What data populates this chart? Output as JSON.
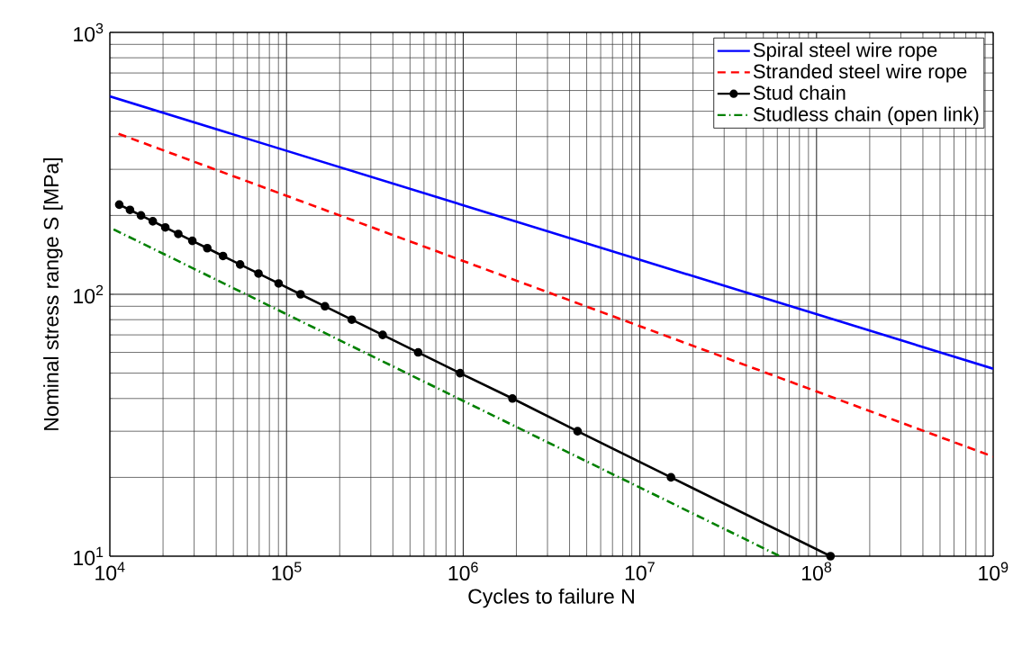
{
  "chart_data": {
    "type": "line",
    "xlabel": "Cycles to failure N",
    "ylabel": "Nominal stress range S [MPa]",
    "log": "xy",
    "grid": true,
    "legend": "top right",
    "xlim": [
      10000,
      1000000000
    ],
    "ylim": [
      10,
      1000
    ],
    "xticks": [
      {
        "value": 10000,
        "label": "10$^{4}$"
      },
      {
        "value": 100000,
        "label": "10$^{5}$"
      },
      {
        "value": 1000000,
        "label": "10$^{6}$"
      },
      {
        "value": 10000000,
        "label": "10$^{7}$"
      },
      {
        "value": 100000000,
        "label": "10$^{8}$"
      },
      {
        "value": 1000000000,
        "label": "10$^{9}$"
      }
    ],
    "yticks": [
      {
        "value": 10,
        "label": "10$^{1}$"
      },
      {
        "value": 100,
        "label": "10$^{2}$"
      },
      {
        "value": 1000,
        "label": "10$^{3}$"
      }
    ],
    "series": [
      {
        "name": "Spiral steel wire rope",
        "color": "#0000ff",
        "line_style": "solid",
        "marker": "none",
        "x": [
          10000,
          1000000000
        ],
        "values": [
          570,
          52
        ]
      },
      {
        "name": "Stranded steel wire rope",
        "color": "#ff0000",
        "line_style": "dashed",
        "marker": "none",
        "x": [
          11200,
          1000000000
        ],
        "values": [
          410,
          24
        ]
      },
      {
        "name": "Stud chain",
        "color": "#000000",
        "line_style": "solid",
        "marker": "circle",
        "x": [
          11300,
          13000,
          15000,
          17500,
          20600,
          24400,
          29300,
          35600,
          43700,
          54600,
          69400,
          90200,
          120000,
          165000,
          234000,
          350000,
          556000,
          960000,
          1900000,
          4440000,
          15000000,
          120000000
        ],
        "values": [
          220,
          210,
          200,
          190,
          180,
          170,
          160,
          150,
          140,
          130,
          120,
          110,
          100,
          90,
          80,
          70,
          60,
          50,
          40,
          30,
          20,
          10
        ]
      },
      {
        "name": "Studless chain (open link)",
        "color": "#008000",
        "line_style": "dashdotted",
        "marker": "none",
        "x": [
          10500,
          62000000
        ],
        "values": [
          177,
          10
        ]
      }
    ]
  }
}
